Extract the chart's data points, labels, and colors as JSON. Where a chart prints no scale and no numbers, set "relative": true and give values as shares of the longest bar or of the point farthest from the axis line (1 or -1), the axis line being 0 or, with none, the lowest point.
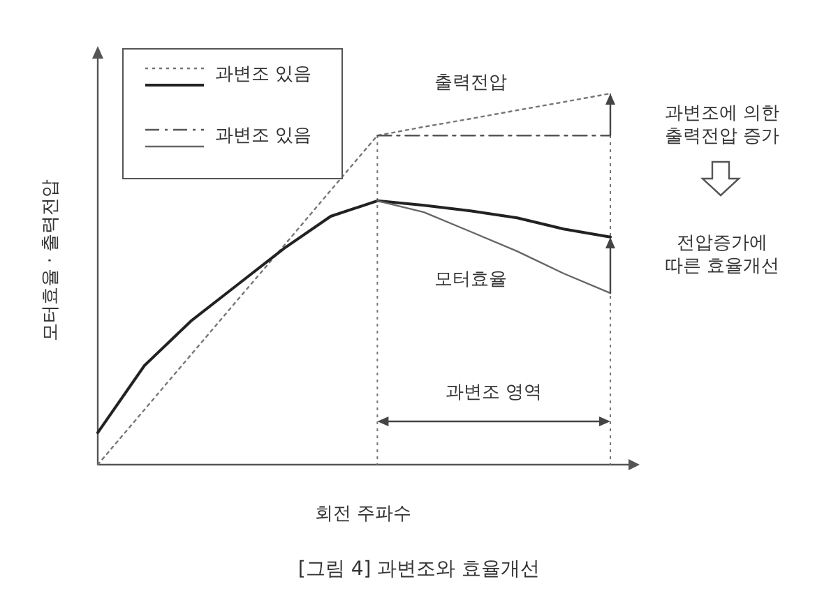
{
  "chart_data": {
    "type": "line",
    "relative": true,
    "xlabel": "회전 주파수",
    "ylabel": "모터효율 · 출력전압",
    "categories": [
      null,
      null,
      null,
      null,
      null,
      null,
      null,
      null,
      null,
      null,
      null,
      null
    ],
    "series": [
      {
        "name": "과변조 있음",
        "color": "#777777",
        "line_style": "dotted",
        "values": [
          0,
          0.148,
          0.296,
          0.444,
          0.591,
          0.739,
          0.887,
          0.91,
          0.932,
          0.955,
          0.977,
          1.0
        ]
      },
      {
        "color": "#222222",
        "line_style": "solid",
        "values": [
          0.086,
          0.267,
          0.387,
          0.485,
          0.583,
          0.669,
          0.711,
          0.699,
          0.684,
          0.665,
          0.635,
          0.613
        ]
      },
      {
        "name": "과변조 있음",
        "color": "#555555",
        "line_style": "dashdot",
        "values": [
          null,
          null,
          null,
          null,
          null,
          null,
          0.887,
          0.887,
          0.887,
          0.887,
          0.887,
          0.887
        ]
      },
      {
        "color": "#666666",
        "line_style": "solid",
        "values": [
          null,
          null,
          null,
          null,
          null,
          null,
          0.711,
          0.68,
          0.628,
          0.575,
          0.515,
          0.462
        ]
      }
    ],
    "legend": "top left",
    "annotations": [
      "출력전압",
      "모터효율",
      "과변조에 의한\n출력전압 증가",
      "전압증가에\n따른 효율개선",
      "과변조 영역",
      "[그림 4] 과변조와 효율개선"
    ]
  }
}
